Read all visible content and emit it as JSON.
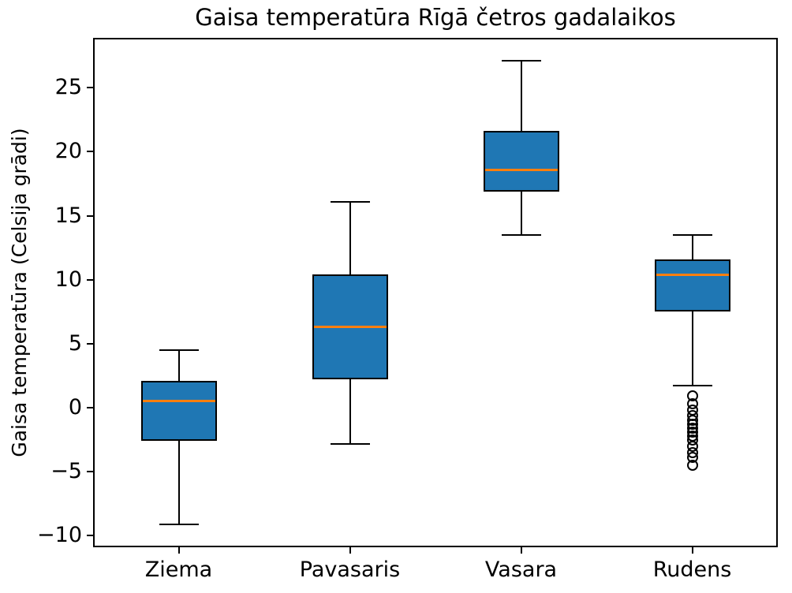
{
  "chart_data": {
    "type": "boxplot",
    "title": "Gaisa temperatūra Rīgā četros gadalaikos",
    "ylabel": "Gaisa temperatūra (Celsija grādi)",
    "xlabel": "",
    "categories": [
      "Ziema",
      "Pavasaris",
      "Vasara",
      "Rudens"
    ],
    "ylim": [
      -10.9,
      28.9
    ],
    "yticks": [
      25,
      20,
      15,
      10,
      5,
      0,
      -5,
      -10
    ],
    "grid": false,
    "legend": null,
    "colors": {
      "box_fill": "#1f77b4",
      "median": "#ff7f0e",
      "line": "#000000",
      "text": "#000000",
      "background": "#ffffff"
    },
    "series": [
      {
        "name": "Ziema",
        "whisker_low": -9.1,
        "q1": -2.6,
        "median": 0.5,
        "q3": 2.1,
        "whisker_high": 4.5,
        "outliers": []
      },
      {
        "name": "Pavasaris",
        "whisker_low": -2.8,
        "q1": 2.2,
        "median": 6.3,
        "q3": 10.4,
        "whisker_high": 16.1,
        "outliers": []
      },
      {
        "name": "Vasara",
        "whisker_low": 13.5,
        "q1": 16.9,
        "median": 18.6,
        "q3": 21.6,
        "whisker_high": 27.1,
        "outliers": []
      },
      {
        "name": "Rudens",
        "whisker_low": 1.7,
        "q1": 7.5,
        "median": 10.4,
        "q3": 11.6,
        "whisker_high": 13.5,
        "outliers": [
          0.9,
          0.3,
          -0.2,
          -0.6,
          -1.0,
          -1.3,
          -1.6,
          -1.9,
          -2.2,
          -2.5,
          -3.0,
          -3.5,
          -3.9,
          -4.5
        ]
      }
    ]
  }
}
